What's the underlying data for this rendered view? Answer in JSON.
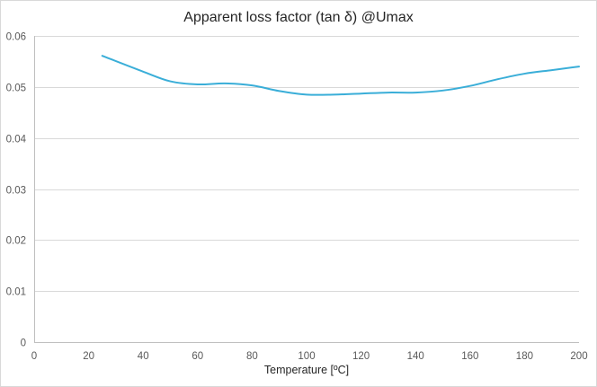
{
  "chart_data": {
    "type": "line",
    "title": "Apparent loss factor (tan δ) @Umax",
    "xlabel": "Temperature [ºC]",
    "ylabel": "",
    "xlim": [
      0,
      200
    ],
    "ylim": [
      0,
      0.06
    ],
    "x_ticks": [
      0,
      20,
      40,
      60,
      80,
      100,
      120,
      140,
      160,
      180,
      200
    ],
    "y_ticks": [
      0,
      0.01,
      0.02,
      0.03,
      0.04,
      0.05,
      0.06
    ],
    "x_tick_labels": [
      "0",
      "20",
      "40",
      "60",
      "80",
      "100",
      "120",
      "140",
      "160",
      "180",
      "200"
    ],
    "y_tick_labels": [
      "0",
      "0.01",
      "0.02",
      "0.03",
      "0.04",
      "0.05",
      "0.06"
    ],
    "grid": true,
    "legend": "none",
    "series": [
      {
        "color": "#3aaed8",
        "x": [
          25,
          40,
          50,
          60,
          70,
          80,
          90,
          100,
          110,
          120,
          130,
          140,
          150,
          160,
          170,
          180,
          190,
          200
        ],
        "y": [
          0.0561,
          0.053,
          0.0511,
          0.0505,
          0.0507,
          0.0503,
          0.0492,
          0.0485,
          0.0485,
          0.0487,
          0.0489,
          0.0489,
          0.0493,
          0.0502,
          0.0515,
          0.0526,
          0.0533,
          0.054
        ]
      }
    ],
    "colors": {
      "grid": "#d9d9d9",
      "axis": "#bfbfbf",
      "text": "#595959",
      "title": "#262626"
    }
  }
}
